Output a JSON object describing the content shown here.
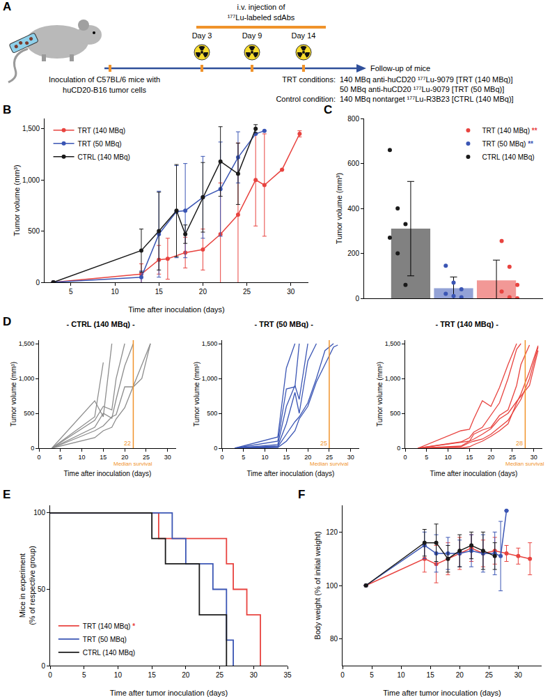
{
  "diagram": {
    "panel": "A",
    "injection_label": [
      "i.v. injection of",
      "¹⁷⁷Lu-labeled sdAbs"
    ],
    "days": [
      "Day 3",
      "Day 9",
      "Day 14"
    ],
    "inoculation": [
      "Inoculation of C57BL/6 mice with",
      "huCD20-B16 tumor cells"
    ],
    "follow_up": "Follow-up of mice",
    "conditions": [
      {
        "label": "TRT conditions:",
        "lines": [
          "140 MBq anti-huCD20 ¹⁷⁷Lu-9079 [TRT (140 MBq)]",
          "50 MBq anti-huCD20 ¹⁷⁷Lu-9079 [TRT (50 MBq)]"
        ]
      },
      {
        "label": "Control condition:",
        "lines": [
          "140 MBq nontarget ¹⁷⁷Lu-R3B23 [CTRL (140 MBq)]"
        ]
      }
    ]
  },
  "chart_data": [
    {
      "panel": "B",
      "type": "line",
      "x_label": "Time after inoculation (days)",
      "y_label": "Tumor volume (mm³)",
      "xlim": [
        2,
        32
      ],
      "xticks": [
        5,
        10,
        15,
        20,
        25,
        30
      ],
      "ylim": [
        0,
        1600
      ],
      "yticks": [
        0,
        500,
        {
          "value": 1000,
          "label": "1,000"
        },
        {
          "value": 1500,
          "label": "1,500"
        }
      ],
      "legend": "top left",
      "marker": "circle",
      "grid": false,
      "series": [
        {
          "name": "TRT (140 MBq)",
          "color": "#e8433f",
          "x": [
            3,
            13,
            15,
            16,
            18,
            20,
            22,
            24,
            26,
            27,
            29,
            31
          ],
          "values": [
            0,
            80,
            220,
            230,
            290,
            320,
            470,
            660,
            1000,
            950,
            1100,
            1450
          ],
          "errors": [
            0,
            100,
            140,
            200,
            150,
            200,
            500,
            700,
            450,
            500,
            0,
            30
          ]
        },
        {
          "name": "TRT (50 MBq)",
          "color": "#3a55b4",
          "x": [
            3,
            13,
            15,
            17,
            18,
            20,
            22,
            24,
            26,
            27
          ],
          "values": [
            0,
            50,
            470,
            690,
            700,
            830,
            910,
            1220,
            1450,
            1480
          ],
          "errors": [
            0,
            60,
            420,
            450,
            460,
            400,
            460,
            250,
            0,
            0
          ]
        },
        {
          "name": "CTRL (140 MBq)",
          "color": "#1a1a1a",
          "x": [
            3,
            13,
            15,
            17,
            18,
            20,
            22,
            24,
            26
          ],
          "values": [
            0,
            310,
            500,
            700,
            470,
            830,
            1180,
            1060,
            1500
          ],
          "errors": [
            0,
            210,
            380,
            450,
            90,
            340,
            340,
            300,
            40
          ]
        }
      ]
    },
    {
      "panel": "C",
      "type": "bar",
      "y_label": "Tumor volume (mm³)",
      "categories": [
        null,
        null,
        null
      ],
      "tick_labels": "y",
      "ylim": [
        0,
        800
      ],
      "yticks": [
        0,
        200,
        400,
        600,
        800
      ],
      "legend": "top right",
      "grid": false,
      "series": [
        {
          "name": "TRT (140 MBq)",
          "color": "#e8433f",
          "significance": "**",
          "values": [
            null,
            null,
            80
          ],
          "errors": [
            null,
            null,
            90
          ],
          "points": [
            [],
            [],
            [
              255,
              140,
              60,
              30,
              5,
              0
            ]
          ]
        },
        {
          "name": "TRT (50 MBq)",
          "color": "#3a55b4",
          "significance": "**",
          "values": [
            null,
            45,
            null
          ],
          "errors": [
            null,
            50,
            null
          ],
          "points": [
            [],
            [
              145,
              70,
              40,
              20,
              10,
              5
            ],
            []
          ]
        },
        {
          "name": "CTRL (140 MBq)",
          "color": "#1a1a1a",
          "values": [
            310,
            null,
            null
          ],
          "errors": [
            210,
            null,
            null
          ],
          "points": [
            [
              660,
              400,
              330,
              270,
              200,
              60
            ],
            [],
            []
          ]
        }
      ]
    },
    {
      "panel": "D",
      "type": "line",
      "title": "- CTRL (140 MBq) -",
      "color": "#8c8c8c",
      "x_label": "Time after inoculation (days)",
      "y_label": "Tumor volume (mm³)",
      "xlim": [
        0,
        32
      ],
      "xticks": [
        0,
        5,
        10,
        15,
        20,
        25,
        30
      ],
      "ylim": [
        0,
        1550
      ],
      "yticks": [
        0,
        500,
        {
          "value": 1000,
          "label": "1,000"
        },
        {
          "value": 1500,
          "label": "1,500"
        }
      ],
      "median_survival": 22,
      "median_label": "Median survival",
      "grid": false,
      "series": [
        {
          "x": [
            3,
            13,
            15,
            17
          ],
          "values": [
            0,
            680,
            450,
            1500
          ]
        },
        {
          "x": [
            3,
            13,
            15
          ],
          "values": [
            0,
            450,
            1230
          ]
        },
        {
          "x": [
            3,
            13,
            15,
            17,
            18,
            20
          ],
          "values": [
            0,
            400,
            600,
            550,
            1000,
            1500
          ]
        },
        {
          "x": [
            3,
            13,
            15,
            17,
            18,
            20,
            22
          ],
          "values": [
            0,
            300,
            500,
            430,
            700,
            1180,
            1500
          ]
        },
        {
          "x": [
            3,
            13,
            15,
            17,
            18,
            20,
            22,
            24,
            26
          ],
          "values": [
            0,
            250,
            320,
            450,
            480,
            880,
            880,
            1000,
            1500
          ]
        },
        {
          "x": [
            3,
            13,
            15,
            17,
            18,
            20,
            22,
            24,
            26
          ],
          "values": [
            0,
            150,
            250,
            300,
            420,
            580,
            890,
            1200,
            1500
          ]
        }
      ]
    },
    {
      "type": "line",
      "title": "- TRT (50 MBq) -",
      "color": "#3a55b4",
      "x_label": "Time after inoculation (days)",
      "y_label": "Tumor volume (mm³)",
      "xlim": [
        0,
        32
      ],
      "xticks": [
        0,
        5,
        10,
        15,
        20,
        25,
        30
      ],
      "ylim": [
        0,
        1550
      ],
      "yticks": [
        0,
        500,
        {
          "value": 1000,
          "label": "1,000"
        },
        {
          "value": 1500,
          "label": "1,500"
        }
      ],
      "median_survival": 25,
      "median_label": "Median survival",
      "grid": false,
      "series": [
        {
          "x": [
            3,
            13,
            15,
            17
          ],
          "values": [
            0,
            160,
            1150,
            1500
          ]
        },
        {
          "x": [
            3,
            13,
            15,
            17,
            18
          ],
          "values": [
            0,
            100,
            850,
            880,
            1500
          ]
        },
        {
          "x": [
            3,
            13,
            15,
            17,
            18,
            20
          ],
          "values": [
            0,
            50,
            600,
            900,
            700,
            1500
          ]
        },
        {
          "x": [
            3,
            13,
            15,
            17,
            18,
            20,
            22
          ],
          "values": [
            0,
            30,
            350,
            800,
            500,
            1250,
            1500
          ]
        },
        {
          "x": [
            3,
            13,
            15,
            17,
            18,
            20,
            22,
            24,
            26
          ],
          "values": [
            0,
            20,
            200,
            380,
            450,
            650,
            1000,
            1400,
            1500
          ]
        },
        {
          "x": [
            3,
            13,
            15,
            17,
            18,
            20,
            22,
            24,
            26,
            27
          ],
          "values": [
            0,
            10,
            100,
            250,
            420,
            600,
            950,
            1200,
            1450,
            1480
          ]
        }
      ]
    },
    {
      "type": "line",
      "title": "- TRT (140 MBq) -",
      "color": "#e8433f",
      "x_label": "Time after inoculation (days)",
      "y_label": "Tumor volume (mm³)",
      "xlim": [
        0,
        32
      ],
      "xticks": [
        0,
        5,
        10,
        15,
        20,
        25,
        30
      ],
      "ylim": [
        0,
        1550
      ],
      "yticks": [
        0,
        500,
        {
          "value": 1000,
          "label": "1,000"
        },
        {
          "value": 1500,
          "label": "1,500"
        }
      ],
      "median_survival": 28,
      "median_label": "Median survival",
      "grid": false,
      "series": [
        {
          "x": [
            3,
            13,
            15,
            16,
            18,
            20,
            22,
            24,
            26
          ],
          "values": [
            0,
            250,
            270,
            420,
            680,
            600,
            870,
            1200,
            1500
          ]
        },
        {
          "x": [
            3,
            13,
            15,
            16,
            18,
            20,
            22,
            24,
            26,
            27
          ],
          "values": [
            0,
            90,
            150,
            230,
            300,
            480,
            650,
            1000,
            1420,
            1500
          ]
        },
        {
          "x": [
            3,
            13,
            15,
            16,
            18,
            20,
            22,
            24,
            26,
            27,
            29
          ],
          "values": [
            0,
            80,
            100,
            200,
            260,
            300,
            470,
            550,
            900,
            1200,
            1480
          ]
        },
        {
          "x": [
            3,
            13,
            15,
            16,
            18,
            20,
            22,
            24,
            26,
            27,
            29,
            31
          ],
          "values": [
            0,
            30,
            100,
            130,
            200,
            280,
            420,
            500,
            670,
            750,
            900,
            1400
          ]
        },
        {
          "x": [
            3,
            13,
            15,
            16,
            18,
            20,
            22,
            24,
            26,
            27,
            29,
            31
          ],
          "values": [
            0,
            20,
            80,
            100,
            130,
            200,
            300,
            400,
            600,
            700,
            1000,
            1450
          ]
        },
        {
          "x": [
            3,
            13,
            15,
            16,
            18,
            20,
            22,
            24,
            26,
            27,
            29,
            31
          ],
          "values": [
            0,
            0,
            20,
            50,
            100,
            170,
            250,
            350,
            650,
            780,
            1100,
            1470
          ]
        }
      ]
    },
    {
      "panel": "E",
      "type": "line",
      "line_style": "step",
      "x_label": "Time after tumor inoculation (days)",
      "y_label": [
        "Mice in experiment",
        "(% of respective group)"
      ],
      "xlim": [
        0,
        35
      ],
      "xticks": [
        0,
        5,
        10,
        15,
        20,
        25,
        30,
        35
      ],
      "ylim": [
        0,
        105
      ],
      "yticks": [
        0,
        50,
        100
      ],
      "legend": "bottom left",
      "grid": false,
      "series": [
        {
          "name": "TRT (140 MBq)",
          "color": "#e8433f",
          "significance": "*",
          "x": [
            0,
            16,
            26,
            27,
            29,
            31
          ],
          "values": [
            100,
            83.3,
            66.7,
            50,
            33.3,
            0
          ]
        },
        {
          "name": "TRT (50 MBq)",
          "color": "#3a55b4",
          "x": [
            0,
            18,
            20,
            24,
            26,
            27
          ],
          "values": [
            100,
            83.3,
            66.7,
            50,
            16.7,
            0
          ]
        },
        {
          "name": "CTRL (140 MBq)",
          "color": "#1a1a1a",
          "x": [
            0,
            15,
            17,
            22,
            26
          ],
          "values": [
            100,
            83.3,
            66.7,
            33.3,
            0
          ]
        }
      ]
    },
    {
      "panel": "F",
      "type": "line",
      "x_label": "Time after tumor inoculation (days)",
      "y_label": "Body weight (% of initial weight)",
      "xlim": [
        0,
        34
      ],
      "xticks": [
        0,
        5,
        10,
        15,
        20,
        25,
        30
      ],
      "ylim": [
        70,
        130
      ],
      "yticks": [
        80,
        100,
        120
      ],
      "marker": "circle",
      "grid": false,
      "series": [
        {
          "name": "TRT (140 MBq)",
          "color": "#e8433f",
          "x": [
            4,
            14,
            16,
            18,
            20,
            22,
            24,
            26,
            28,
            30,
            32
          ],
          "values": [
            100,
            110,
            108,
            110,
            112,
            114,
            112,
            113,
            112,
            111,
            110
          ],
          "errors": [
            0,
            5,
            7,
            6,
            6,
            5,
            5,
            5,
            3,
            3,
            6
          ]
        },
        {
          "name": "TRT (50 MBq)",
          "color": "#3a55b4",
          "x": [
            4,
            14,
            16,
            18,
            20,
            22,
            24,
            26,
            27,
            28
          ],
          "values": [
            100,
            115,
            112,
            112,
            112,
            113,
            112,
            112,
            111,
            128
          ],
          "errors": [
            0,
            5,
            7,
            6,
            5,
            6,
            7,
            8,
            13,
            0
          ]
        },
        {
          "name": "CTRL (140 MBq)",
          "color": "#1a1a1a",
          "x": [
            4,
            14,
            16,
            18,
            20,
            22,
            24,
            26
          ],
          "values": [
            100,
            116,
            116,
            110,
            113,
            115,
            113,
            111
          ],
          "errors": [
            0,
            5,
            7,
            5,
            6,
            5,
            7,
            5
          ]
        }
      ]
    }
  ]
}
